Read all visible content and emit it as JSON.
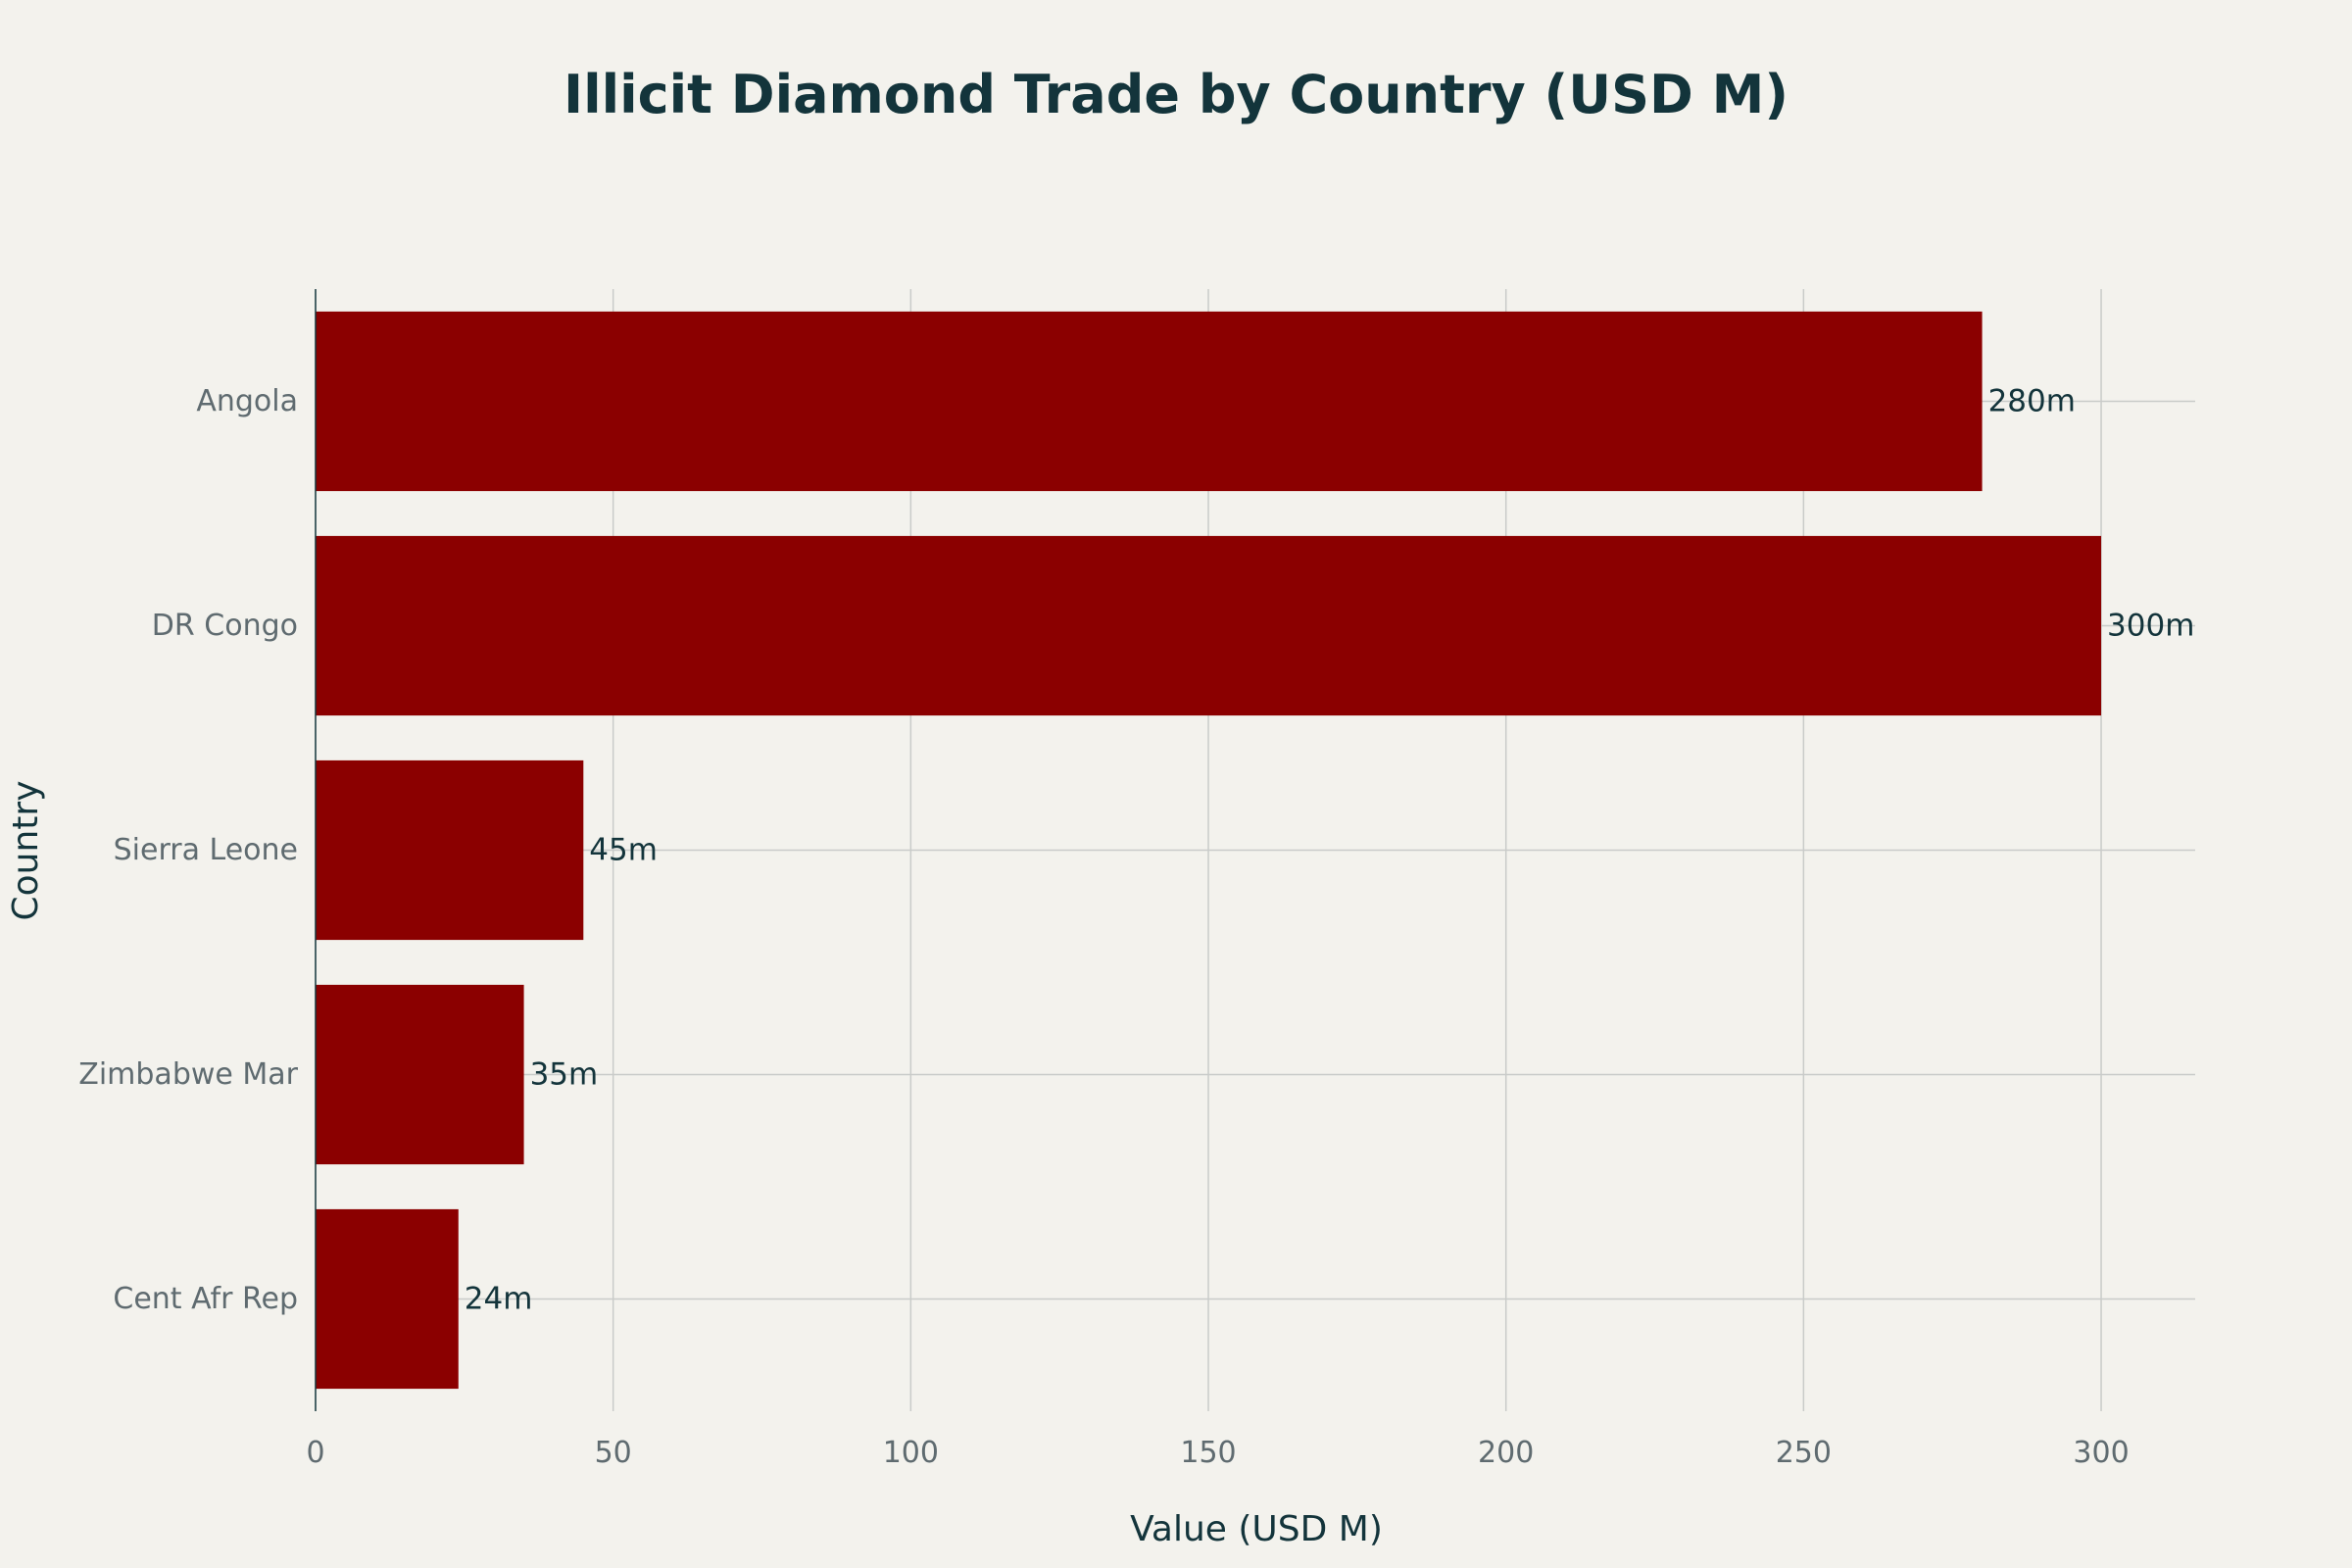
{
  "chart_data": {
    "type": "bar",
    "orientation": "horizontal",
    "title": "Illicit Diamond Trade by Country (USD M)",
    "xlabel": "Value (USD M)",
    "ylabel": "Country",
    "categories": [
      "Angola",
      "DR Congo",
      "Sierra Leone",
      "Zimbabwe Mar",
      "Cent Afr Rep"
    ],
    "values": [
      280,
      300,
      45,
      35,
      24
    ],
    "data_labels": [
      "280m",
      "300m",
      "45m",
      "35m",
      "24m"
    ],
    "xlim": [
      0,
      315.8
    ],
    "xticks": [
      0,
      50,
      100,
      150,
      200,
      250,
      300
    ],
    "xtick_labels": [
      "0",
      "50",
      "100",
      "150",
      "200",
      "250",
      "300"
    ],
    "grid": true,
    "legend": "none",
    "colors": {
      "bar": "#8b0000",
      "background": "#f3f2ed",
      "grid": "#c9cbc9",
      "title": "#13343b",
      "tick_label": "#5f6b70",
      "data_label": "#13343b",
      "axis_line": "#13343b"
    }
  }
}
